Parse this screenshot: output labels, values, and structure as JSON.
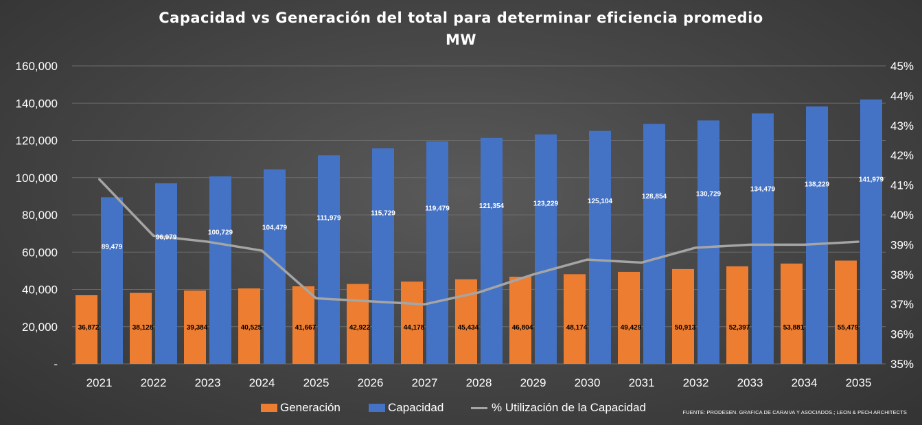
{
  "chart_data": {
    "type": "bar",
    "title": "Capacidad vs Generación del total para determinar eficiencia promedio",
    "subtitle": "MW",
    "categories": [
      "2021",
      "2022",
      "2023",
      "2024",
      "2025",
      "2026",
      "2027",
      "2028",
      "2029",
      "2030",
      "2031",
      "2032",
      "2033",
      "2034",
      "2035"
    ],
    "series": [
      {
        "name": "Generación",
        "type": "bar",
        "axis": "left",
        "color": "#ed7d31",
        "values": [
          36872,
          38128,
          39384,
          40525,
          41667,
          42922,
          44178,
          45434,
          46804,
          48174,
          49429,
          50913,
          52397,
          53881,
          55479
        ],
        "labels": [
          "36,872",
          "38,128",
          "39,384",
          "40,525",
          "41,667",
          "42,922",
          "44,178",
          "45,434",
          "46,804",
          "48,174",
          "49,429",
          "50,913",
          "52,397",
          "53,881",
          "55,479"
        ]
      },
      {
        "name": "Capacidad",
        "type": "bar",
        "axis": "left",
        "color": "#4472c4",
        "values": [
          89479,
          96979,
          100729,
          104479,
          111979,
          115729,
          119479,
          121354,
          123229,
          125104,
          128854,
          130729,
          134479,
          138229,
          141979
        ],
        "labels": [
          "89,479",
          "96,979",
          "100,729",
          "104,479",
          "111,979",
          "115,729",
          "119,479",
          "121,354",
          "123,229",
          "125,104",
          "128,854",
          "130,729",
          "134,479",
          "138,229",
          "141,979"
        ]
      },
      {
        "name": "% Utilización de la Capacidad",
        "type": "line",
        "axis": "right",
        "color": "#a5a5a5",
        "values": [
          41.2,
          39.3,
          39.1,
          38.8,
          37.2,
          37.1,
          37.0,
          37.4,
          38.0,
          38.5,
          38.4,
          38.9,
          39.0,
          39.0,
          39.1
        ]
      }
    ],
    "y_left": {
      "min": 0,
      "max": 160000,
      "ticks": [
        0,
        20000,
        40000,
        60000,
        80000,
        100000,
        120000,
        140000,
        160000
      ],
      "tick_labels": [
        "-",
        "20,000",
        "40,000",
        "60,000",
        "80,000",
        "100,000",
        "120,000",
        "140,000",
        "160,000"
      ]
    },
    "y_right": {
      "min": 35,
      "max": 45,
      "ticks": [
        35,
        36,
        37,
        38,
        39,
        40,
        41,
        42,
        43,
        44,
        45
      ],
      "tick_labels": [
        "35%",
        "36%",
        "37%",
        "38%",
        "39%",
        "40%",
        "41%",
        "42%",
        "43%",
        "44%",
        "45%"
      ]
    },
    "grid": true,
    "legend": "bottom",
    "source": "FUENTE: PRODESEN. GRAFICA DE CARAIVA Y ASOCIADOS.; LEON & PECH ARCHITECTS"
  }
}
